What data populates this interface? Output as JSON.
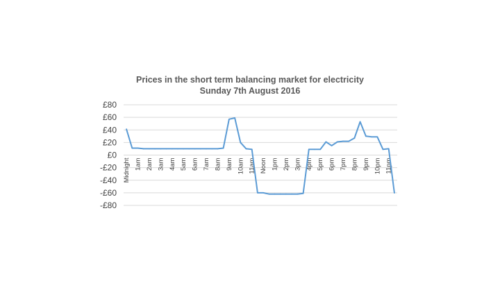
{
  "chart_data": {
    "type": "line",
    "title": "Prices in the short term balancing market for electricity",
    "subtitle": "Sunday 7th August 2016",
    "xlabel": "",
    "ylabel": "",
    "ylim": [
      -80,
      80
    ],
    "y_ticks": [
      80,
      60,
      40,
      20,
      0,
      -20,
      -40,
      -60,
      -80
    ],
    "y_tick_labels": [
      "£80",
      "£60",
      "£40",
      "£20",
      "£0",
      "-£20",
      "-£40",
      "-£60",
      "-£80"
    ],
    "grid": true,
    "legend": "none",
    "categories": [
      "Midnight",
      "",
      "1am",
      "",
      "2am",
      "",
      "3am",
      "",
      "4am",
      "",
      "5am",
      "",
      "6am",
      "",
      "7am",
      "",
      "8am",
      "",
      "9am",
      "",
      "10am",
      "",
      "11am",
      "",
      "Noon",
      "",
      "1pm",
      "",
      "2pm",
      "",
      "3pm",
      "",
      "4pm",
      "",
      "5pm",
      "",
      "6pm",
      "",
      "7pm",
      "",
      "8pm",
      "",
      "9pm",
      "",
      "10pm",
      "",
      "11pm",
      ""
    ],
    "series": [
      {
        "color": "#5b9bd5",
        "values": [
          41,
          11,
          11,
          10,
          10,
          10,
          10,
          10,
          10,
          10,
          10,
          10,
          10,
          10,
          10,
          10,
          10,
          11,
          57,
          59,
          20,
          10,
          9,
          -60,
          -60,
          -62,
          -62,
          -62,
          -62,
          -62,
          -62,
          -61,
          9,
          9,
          9,
          21,
          15,
          21,
          22,
          22,
          27,
          53,
          30,
          29,
          29,
          9,
          10,
          -60
        ]
      }
    ]
  }
}
